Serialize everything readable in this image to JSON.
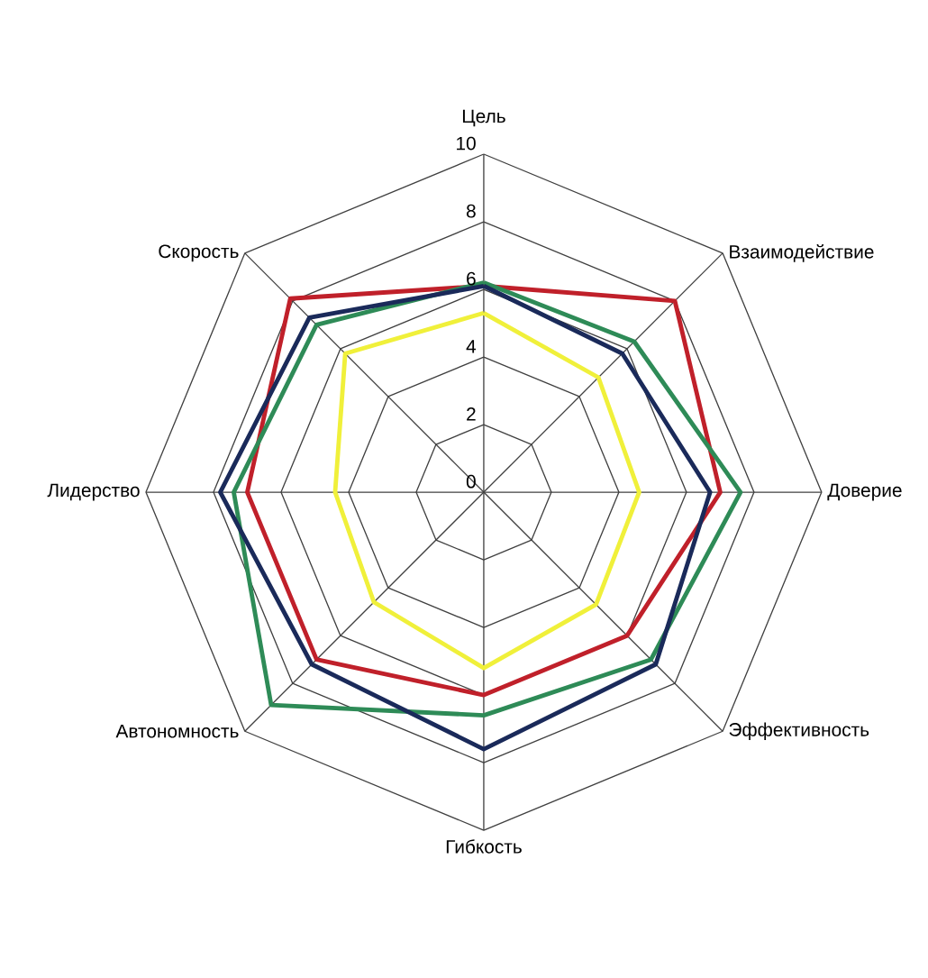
{
  "chart_data": {
    "type": "radar",
    "categories": [
      "Цель",
      "Взаимодействие",
      "Доверие",
      "Эффективность",
      "Гибкость",
      "Автономность",
      "Лидерство",
      "Скорость"
    ],
    "series": [
      {
        "color": "#c0202a",
        "values": [
          6.1,
          8.0,
          7.0,
          6.0,
          6.0,
          7.0,
          7.0,
          8.1
        ]
      },
      {
        "color": "#2e8b57",
        "values": [
          6.2,
          6.3,
          7.6,
          7.0,
          6.6,
          8.9,
          7.4,
          7.0
        ]
      },
      {
        "color": "#1a2a5a",
        "values": [
          6.1,
          5.8,
          6.7,
          7.2,
          7.6,
          7.2,
          7.8,
          7.3
        ]
      },
      {
        "color": "#f0f03a",
        "values": [
          5.3,
          4.8,
          4.6,
          4.7,
          5.2,
          4.6,
          4.4,
          5.8
        ]
      }
    ],
    "ylim": [
      0,
      10
    ],
    "yticks": [
      0,
      2,
      4,
      6,
      8,
      10
    ],
    "grid": true
  }
}
